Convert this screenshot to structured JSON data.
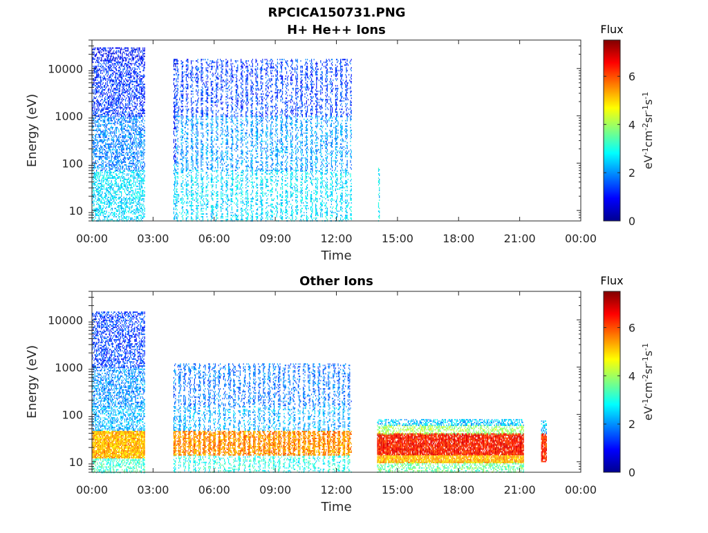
{
  "figure": {
    "title": "RPCICA150731.PNG"
  },
  "chart_data": [
    {
      "type": "heatmap",
      "title": "H+ He++ Ions",
      "xlabel": "Time",
      "ylabel": "Energy (eV)",
      "x_tick_labels": [
        "00:00",
        "03:00",
        "06:00",
        "09:00",
        "12:00",
        "15:00",
        "18:00",
        "21:00",
        "00:00"
      ],
      "x_range_hours": [
        0,
        24
      ],
      "y_scale": "log",
      "y_range_eV": [
        6,
        40000
      ],
      "y_tick_values": [
        10,
        100,
        1000,
        10000
      ],
      "y_tick_labels": [
        "10",
        "100",
        "1000",
        "10000"
      ],
      "colorbar": {
        "title": "Flux",
        "unit_label": "eV-1cm-2sr-1s-1",
        "range": [
          0,
          7.5
        ],
        "tick_labels": [
          "0",
          "2",
          "4",
          "6"
        ],
        "colormap": "jet"
      },
      "data_segments": [
        {
          "start_h": 0.0,
          "end_h": 2.58,
          "pattern": "dense",
          "bands": [
            {
              "e_min": 6,
              "e_max": 70,
              "flux": 2.6
            },
            {
              "e_min": 70,
              "e_max": 1000,
              "flux": 1.9
            },
            {
              "e_min": 1000,
              "e_max": 15000,
              "flux": 1.3
            },
            {
              "e_min": 15000,
              "e_max": 28000,
              "flux": 1.0
            }
          ]
        },
        {
          "start_h": 4.0,
          "end_h": 4.12,
          "pattern": "dense",
          "bands": [
            {
              "e_min": 6,
              "e_max": 100,
              "flux": 2.5
            },
            {
              "e_min": 100,
              "e_max": 16000,
              "flux": 1.1
            }
          ]
        },
        {
          "start_h": 4.12,
          "end_h": 12.72,
          "pattern": "striped",
          "bands": [
            {
              "e_min": 6,
              "e_max": 70,
              "flux": 2.6
            },
            {
              "e_min": 70,
              "e_max": 1000,
              "flux": 2.1
            },
            {
              "e_min": 1000,
              "e_max": 16000,
              "flux": 1.4
            }
          ]
        },
        {
          "start_h": 14.05,
          "end_h": 14.12,
          "pattern": "dense",
          "bands": [
            {
              "e_min": 6,
              "e_max": 80,
              "flux": 2.7
            }
          ]
        }
      ]
    },
    {
      "type": "heatmap",
      "title": "Other Ions",
      "xlabel": "Time",
      "ylabel": "Energy (eV)",
      "x_tick_labels": [
        "00:00",
        "03:00",
        "06:00",
        "09:00",
        "12:00",
        "15:00",
        "18:00",
        "21:00",
        "00:00"
      ],
      "x_range_hours": [
        0,
        24
      ],
      "y_scale": "log",
      "y_range_eV": [
        6,
        40000
      ],
      "y_tick_values": [
        10,
        100,
        1000,
        10000
      ],
      "y_tick_labels": [
        "10",
        "100",
        "1000",
        "10000"
      ],
      "colorbar": {
        "title": "Flux",
        "unit_label": "eV-1cm-2sr-1s-1",
        "range": [
          0,
          7.5
        ],
        "tick_labels": [
          "0",
          "2",
          "4",
          "6"
        ],
        "colormap": "jet"
      },
      "data_segments": [
        {
          "start_h": 0.0,
          "end_h": 2.58,
          "pattern": "dense",
          "bands": [
            {
              "e_min": 6,
              "e_max": 12,
              "flux": 3.2
            },
            {
              "e_min": 12,
              "e_max": 45,
              "flux": 5.2
            },
            {
              "e_min": 45,
              "e_max": 150,
              "flux": 2.3
            },
            {
              "e_min": 150,
              "e_max": 1000,
              "flux": 2.0
            },
            {
              "e_min": 1000,
              "e_max": 15000,
              "flux": 1.4
            }
          ]
        },
        {
          "start_h": 4.0,
          "end_h": 12.72,
          "pattern": "striped",
          "bands": [
            {
              "e_min": 6,
              "e_max": 14,
              "flux": 3.0
            },
            {
              "e_min": 14,
              "e_max": 45,
              "flux": 5.5
            },
            {
              "e_min": 45,
              "e_max": 150,
              "flux": 2.2
            },
            {
              "e_min": 150,
              "e_max": 1200,
              "flux": 1.8
            }
          ]
        },
        {
          "start_h": 14.0,
          "end_h": 21.2,
          "pattern": "dense",
          "bands": [
            {
              "e_min": 6,
              "e_max": 10,
              "flux": 3.6
            },
            {
              "e_min": 10,
              "e_max": 14,
              "flux": 5.2
            },
            {
              "e_min": 14,
              "e_max": 40,
              "flux": 6.4
            },
            {
              "e_min": 40,
              "e_max": 60,
              "flux": 4.0
            },
            {
              "e_min": 60,
              "e_max": 80,
              "flux": 2.4
            }
          ]
        },
        {
          "start_h": 22.05,
          "end_h": 22.3,
          "pattern": "dense",
          "bands": [
            {
              "e_min": 10,
              "e_max": 40,
              "flux": 6.2
            },
            {
              "e_min": 40,
              "e_max": 80,
              "flux": 2.4
            }
          ]
        }
      ]
    }
  ]
}
